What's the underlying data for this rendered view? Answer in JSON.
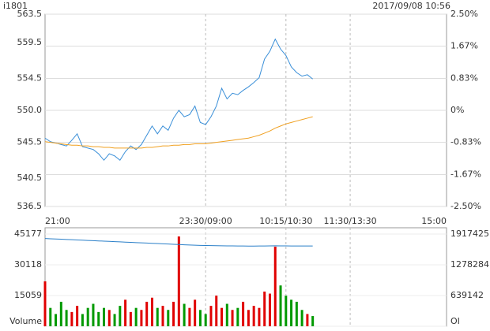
{
  "header": {
    "symbol": "i1801",
    "datetime": "2017/09/08 10:56"
  },
  "chart_data": [
    {
      "type": "line",
      "x": [
        0,
        5,
        10,
        15,
        20,
        25,
        30,
        35,
        40,
        45,
        50,
        55,
        60,
        65,
        70,
        75,
        80,
        85,
        90,
        95,
        100,
        105,
        110,
        115,
        120,
        125,
        130,
        135,
        140,
        145,
        150,
        155,
        160,
        165,
        170,
        175,
        180,
        185,
        190,
        195,
        200,
        205,
        210,
        215,
        220,
        225,
        230,
        235,
        240,
        245,
        250
      ],
      "xlim": [
        0,
        375
      ],
      "xticks": [
        {
          "value": 0,
          "label": "21:00"
        },
        {
          "value": 150,
          "label": "23:30/09:00"
        },
        {
          "value": 225,
          "label": "10:15/10:30"
        },
        {
          "value": 285,
          "label": "11:30/13:30"
        },
        {
          "value": 375,
          "label": "15:00"
        }
      ],
      "ylim": [
        536.5,
        563.5
      ],
      "yticks": [
        563.5,
        559.5,
        554.5,
        {
          "value": 550,
          "label": "550.0"
        },
        545.5,
        540.5,
        536.5
      ],
      "y2lim": [
        -2.5,
        2.5
      ],
      "y2ticks": [
        {
          "value": 2.5,
          "label": "2.50%"
        },
        {
          "value": 1.67,
          "label": "1.67%"
        },
        {
          "value": 0.83,
          "label": "0.83%"
        },
        {
          "value": 0,
          "label": "0%"
        },
        {
          "value": -0.83,
          "label": "-0.83%"
        },
        {
          "value": -1.67,
          "label": "-1.67%"
        },
        {
          "value": -2.5,
          "label": "-2.50%"
        }
      ],
      "grid": true,
      "up_color": "#e00000",
      "flat_color": "#000000",
      "down_color": "#009900",
      "series": [
        {
          "color": "#3a8fd8",
          "values": [
            546.1,
            545.6,
            545.4,
            545.2,
            545.0,
            545.8,
            546.7,
            544.9,
            544.7,
            544.5,
            543.9,
            543.0,
            543.9,
            543.6,
            543.0,
            544.2,
            545.0,
            544.5,
            545.2,
            546.5,
            547.8,
            546.7,
            547.8,
            547.2,
            548.9,
            550.0,
            549.1,
            549.4,
            550.6,
            548.3,
            548.0,
            549.1,
            550.6,
            553.1,
            551.6,
            552.4,
            552.2,
            552.8,
            553.3,
            553.9,
            554.6,
            557.2,
            558.3,
            560.0,
            558.6,
            557.7,
            556.1,
            555.3,
            554.8,
            555.0,
            554.4
          ]
        },
        {
          "color": "#f0a020",
          "values": [
            545.6,
            545.5,
            545.4,
            545.3,
            545.2,
            545.1,
            545.1,
            545.0,
            545.0,
            544.9,
            544.9,
            544.8,
            544.8,
            544.7,
            544.7,
            544.7,
            544.7,
            544.7,
            544.7,
            544.8,
            544.8,
            544.9,
            545.0,
            545.0,
            545.1,
            545.1,
            545.2,
            545.2,
            545.3,
            545.3,
            545.3,
            545.4,
            545.5,
            545.6,
            545.7,
            545.8,
            545.9,
            546.0,
            546.1,
            546.3,
            546.5,
            546.8,
            547.1,
            547.5,
            547.8,
            548.1,
            548.3,
            548.5,
            548.7,
            548.9,
            549.1
          ]
        }
      ]
    },
    {
      "type": "bar",
      "x": [
        0,
        5,
        10,
        15,
        20,
        25,
        30,
        35,
        40,
        45,
        50,
        55,
        60,
        65,
        70,
        75,
        80,
        85,
        90,
        95,
        100,
        105,
        110,
        115,
        120,
        125,
        130,
        135,
        140,
        145,
        150,
        155,
        160,
        165,
        170,
        175,
        180,
        185,
        190,
        195,
        200,
        205,
        210,
        215,
        220,
        225,
        230,
        235,
        240,
        245,
        250
      ],
      "xlim": [
        0,
        375
      ],
      "xticks": [
        0,
        150,
        225,
        285,
        375
      ],
      "ylim": [
        0,
        45177
      ],
      "yticks": [
        {
          "value": 0,
          "label": "Volume"
        },
        15059,
        30118,
        45177
      ],
      "y2lim": [
        0,
        1917425
      ],
      "y2ticks": [
        {
          "value": 0,
          "label": "OI"
        },
        639142,
        1278284,
        1917425
      ],
      "series": [
        {
          "values": [
            22000,
            9000,
            6000,
            12000,
            8000,
            7000,
            10000,
            6000,
            9000,
            11000,
            7000,
            9000,
            8000,
            6000,
            10000,
            13000,
            7000,
            9000,
            8000,
            12000,
            14000,
            9000,
            10000,
            8000,
            12000,
            44000,
            11000,
            9000,
            13000,
            8000,
            6000,
            10000,
            15000,
            9000,
            11000,
            8000,
            9000,
            12000,
            8000,
            10000,
            9000,
            17000,
            16000,
            39000,
            20000,
            15000,
            13000,
            12000,
            8000,
            6000,
            5000
          ]
        },
        {
          "axis": "y2",
          "color": "#2a7fc8",
          "values": [
            1825000,
            1820000,
            1815000,
            1810000,
            1805000,
            1800000,
            1795000,
            1790000,
            1785000,
            1780000,
            1775000,
            1770000,
            1765000,
            1760000,
            1755000,
            1750000,
            1745000,
            1740000,
            1735000,
            1730000,
            1725000,
            1720000,
            1715000,
            1710000,
            1705000,
            1700000,
            1695000,
            1690000,
            1685000,
            1682000,
            1680000,
            1678000,
            1676000,
            1674000,
            1672000,
            1671000,
            1670000,
            1669000,
            1668000,
            1668000,
            1669000,
            1670000,
            1671000,
            1673000,
            1672000,
            1671000,
            1670000,
            1670000,
            1669000,
            1669000,
            1669000
          ]
        }
      ]
    }
  ]
}
